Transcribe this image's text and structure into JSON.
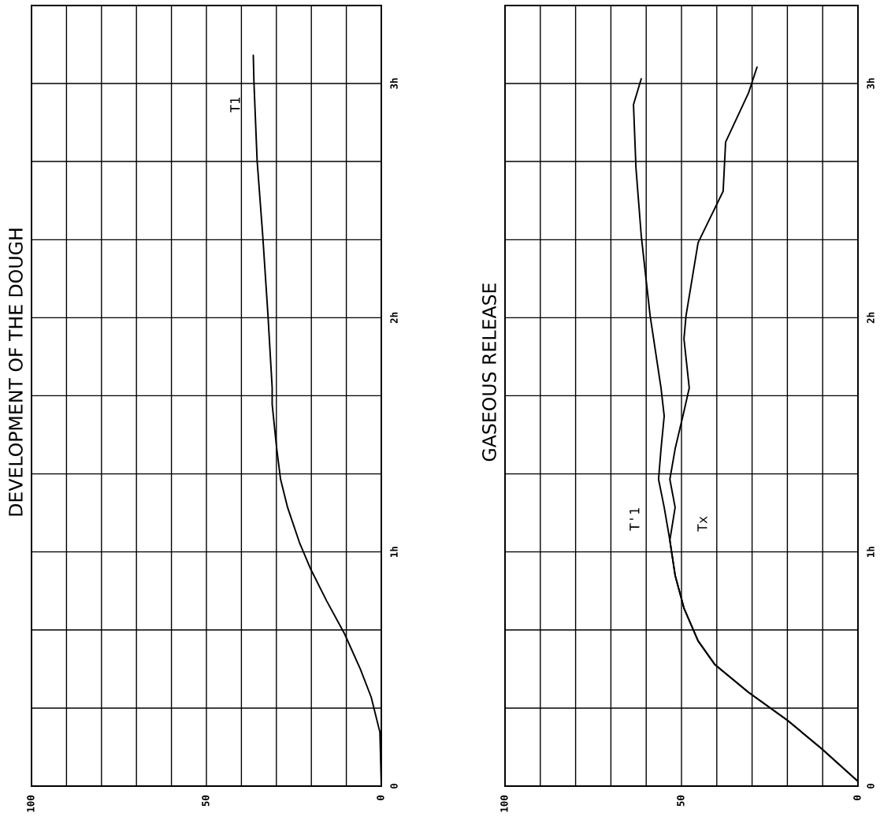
{
  "chart_data": [
    {
      "type": "line",
      "title": "DEVELOPMENT OF THE DOUGH",
      "series": [
        {
          "color": "#000000",
          "x": [
            0,
            0.4,
            2.9,
            6,
            10.5,
            15.6,
            20.3,
            23.4,
            26.8,
            28.8,
            29.9,
            31.2,
            31.2,
            32.4,
            33.9,
            35.5,
            36.4,
            36.6
          ],
          "values": [
            0,
            0.23,
            0.38,
            0.5,
            0.65,
            0.79,
            0.93,
            1.04,
            1.19,
            1.31,
            1.44,
            1.63,
            1.7,
            2.01,
            2.35,
            2.67,
            3.0,
            3.12
          ]
        }
      ],
      "xlim": [
        100,
        0
      ],
      "xticks": [
        {
          "value": 100,
          "label": "100"
        },
        {
          "value": 90,
          "label": null
        },
        {
          "value": 80,
          "label": null
        },
        {
          "value": 70,
          "label": null
        },
        {
          "value": 60,
          "label": null
        },
        {
          "value": 50,
          "label": "50"
        },
        {
          "value": 40,
          "label": null
        },
        {
          "value": 30,
          "label": null
        },
        {
          "value": 20,
          "label": null
        },
        {
          "value": 10,
          "label": null
        },
        {
          "value": 0,
          "label": "0"
        }
      ],
      "ylim": [
        0,
        3.333
      ],
      "yticks": [
        {
          "value": 0,
          "label": "0"
        },
        {
          "value": 0.333,
          "label": null
        },
        {
          "value": 0.667,
          "label": null
        },
        {
          "value": 1,
          "label": "1h"
        },
        {
          "value": 1.333,
          "label": null
        },
        {
          "value": 1.667,
          "label": null
        },
        {
          "value": 2,
          "label": "2h"
        },
        {
          "value": 2.333,
          "label": null
        },
        {
          "value": 2.667,
          "label": null
        },
        {
          "value": 3,
          "label": "3h"
        }
      ],
      "grid": true,
      "annotations": [
        "T1"
      ]
    },
    {
      "type": "line",
      "title": "GASEOUS RELEASE",
      "series": [
        {
          "color": "#000000",
          "x": [
            0,
            10.3,
            19.9,
            31,
            40.6,
            45.3,
            49.3,
            51.8,
            53.3,
            54.9,
            56.5,
            55.8,
            54.9,
            55.8,
            58.9,
            61.4,
            62.9,
            63.6,
            61.4
          ],
          "values": [
            0.02,
            0.16,
            0.28,
            0.4,
            0.52,
            0.62,
            0.76,
            0.9,
            1.05,
            1.19,
            1.31,
            1.44,
            1.58,
            1.7,
            2.01,
            2.35,
            2.64,
            2.91,
            3.02
          ]
        },
        {
          "color": "#000000",
          "x": [
            0,
            10.3,
            19.9,
            31,
            40.6,
            45.3,
            49.3,
            51.8,
            53.3,
            51.8,
            53.3,
            51.8,
            49.3,
            47.8,
            49.3,
            48.7,
            45.3,
            38.2,
            37.5,
            31,
            28.6
          ],
          "values": [
            0.02,
            0.16,
            0.28,
            0.4,
            0.52,
            0.62,
            0.76,
            0.9,
            1.05,
            1.19,
            1.31,
            1.44,
            1.6,
            1.7,
            1.91,
            2.01,
            2.32,
            2.54,
            2.75,
            2.96,
            3.07
          ]
        }
      ],
      "xlim": [
        100,
        0
      ],
      "xticks": [
        {
          "value": 100,
          "label": "100"
        },
        {
          "value": 90,
          "label": null
        },
        {
          "value": 80,
          "label": null
        },
        {
          "value": 70,
          "label": null
        },
        {
          "value": 60,
          "label": null
        },
        {
          "value": 50,
          "label": "50"
        },
        {
          "value": 40,
          "label": null
        },
        {
          "value": 30,
          "label": null
        },
        {
          "value": 20,
          "label": null
        },
        {
          "value": 10,
          "label": null
        },
        {
          "value": 0,
          "label": "0"
        }
      ],
      "ylim": [
        0,
        3.333
      ],
      "yticks": [
        {
          "value": 0,
          "label": "0"
        },
        {
          "value": 0.333,
          "label": null
        },
        {
          "value": 0.667,
          "label": null
        },
        {
          "value": 1,
          "label": "1h"
        },
        {
          "value": 1.333,
          "label": null
        },
        {
          "value": 1.667,
          "label": null
        },
        {
          "value": 2,
          "label": "2h"
        },
        {
          "value": 2.333,
          "label": null
        },
        {
          "value": 2.667,
          "label": null
        },
        {
          "value": 3,
          "label": "3h"
        }
      ],
      "grid": true,
      "annotations": [
        "T'1",
        "Tx"
      ]
    }
  ]
}
